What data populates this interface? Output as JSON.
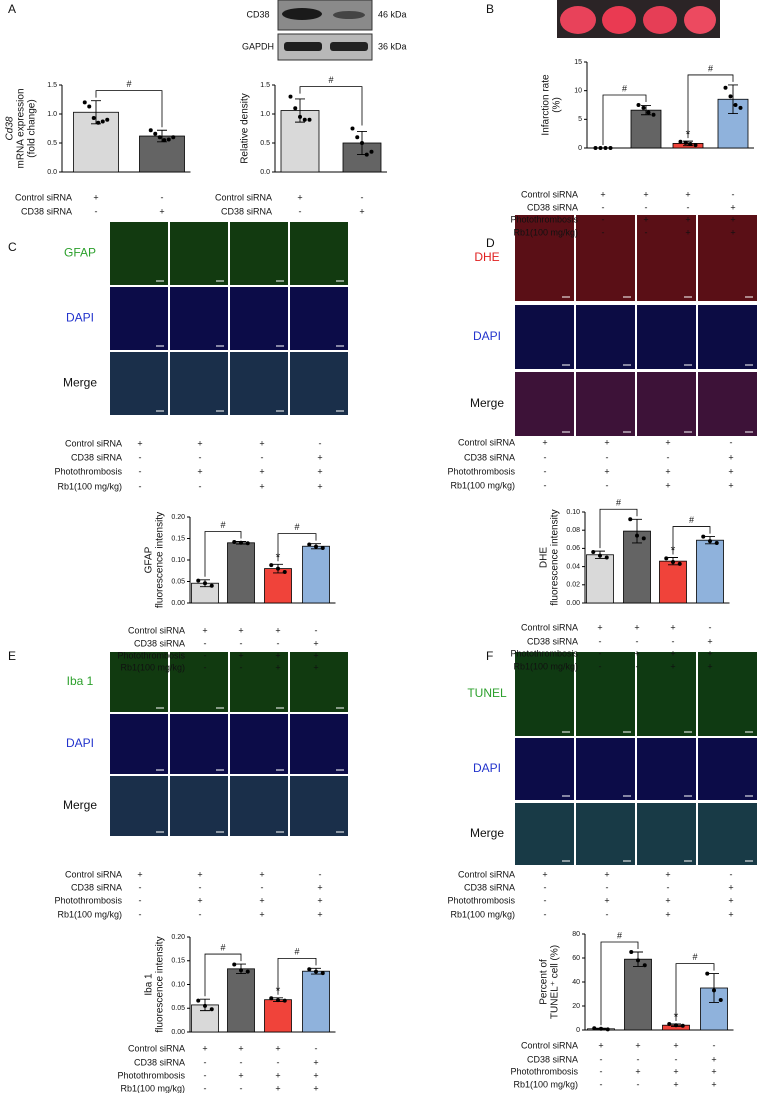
{
  "panel_labels": [
    "A",
    "B",
    "C",
    "D",
    "E",
    "F"
  ],
  "blot": {
    "rows": [
      {
        "protein": "CD38",
        "size": "46 kDa"
      },
      {
        "protein": "GAPDH",
        "size": "36 kDa"
      }
    ]
  },
  "image_panels": [
    {
      "rows": [
        "GFAP",
        "DAPI",
        "Merge"
      ]
    },
    {
      "rows": [
        "DHE",
        "DAPI",
        "Merge"
      ]
    },
    {
      "rows": [
        "Iba 1",
        "DAPI",
        "Merge"
      ]
    },
    {
      "rows": [
        "TUNEL",
        "DAPI",
        "Merge"
      ]
    }
  ],
  "tables": [
    {
      "rows": [
        {
          "label": "Control siRNA",
          "signs": [
            "+",
            "-"
          ]
        },
        {
          "label": "CD38 siRNA",
          "signs": [
            "-",
            "+"
          ]
        }
      ]
    },
    {
      "rows": [
        {
          "label": "Control siRNA",
          "signs": [
            "+",
            "-"
          ]
        },
        {
          "label": "CD38 siRNA",
          "signs": [
            "-",
            "+"
          ]
        }
      ]
    },
    {
      "rows": [
        {
          "label": "Control siRNA",
          "signs": [
            "+",
            "+",
            "+",
            "-"
          ]
        },
        {
          "label": "CD38 siRNA",
          "signs": [
            "-",
            "-",
            "-",
            "+"
          ]
        },
        {
          "label": "Photothrombosis",
          "signs": [
            "-",
            "+",
            "+",
            "+"
          ]
        },
        {
          "label": "Rb1(100 mg/kg)",
          "signs": [
            "-",
            "-",
            "+",
            "+"
          ]
        }
      ]
    },
    {
      "rows": [
        {
          "label": "Control siRNA",
          "signs": [
            "+",
            "+",
            "+",
            "-"
          ]
        },
        {
          "label": "CD38 siRNA",
          "signs": [
            "-",
            "-",
            "-",
            "+"
          ]
        },
        {
          "label": "Photothrombosis",
          "signs": [
            "-",
            "+",
            "+",
            "+"
          ]
        },
        {
          "label": "Rb1(100 mg/kg)",
          "signs": [
            "-",
            "-",
            "+",
            "+"
          ]
        }
      ]
    },
    {
      "rows": [
        {
          "label": "Control siRNA",
          "signs": [
            "+",
            "+",
            "+",
            "-"
          ]
        },
        {
          "label": "CD38 siRNA",
          "signs": [
            "-",
            "-",
            "-",
            "+"
          ]
        },
        {
          "label": "Photothrombosis",
          "signs": [
            "-",
            "+",
            "+",
            "+"
          ]
        },
        {
          "label": "Rb1(100 mg/kg)",
          "signs": [
            "-",
            "-",
            "+",
            "+"
          ]
        }
      ]
    },
    {
      "rows": [
        {
          "label": "Control siRNA",
          "signs": [
            "+",
            "+",
            "+",
            "-"
          ]
        },
        {
          "label": "CD38 siRNA",
          "signs": [
            "-",
            "-",
            "-",
            "+"
          ]
        },
        {
          "label": "Photothrombosis",
          "signs": [
            "-",
            "+",
            "+",
            "+"
          ]
        },
        {
          "label": "Rb1(100 mg/kg)",
          "signs": [
            "-",
            "-",
            "+",
            "+"
          ]
        }
      ]
    },
    {
      "rows": [
        {
          "label": "Control siRNA",
          "signs": [
            "+",
            "+",
            "+",
            "-"
          ]
        },
        {
          "label": "CD38 siRNA",
          "signs": [
            "-",
            "-",
            "-",
            "+"
          ]
        },
        {
          "label": "Photothrombosis",
          "signs": [
            "-",
            "+",
            "+",
            "+"
          ]
        },
        {
          "label": "Rb1(100 mg/kg)",
          "signs": [
            "-",
            "-",
            "+",
            "+"
          ]
        }
      ]
    },
    {
      "rows": [
        {
          "label": "Control siRNA",
          "signs": [
            "+",
            "+",
            "+",
            "-"
          ]
        },
        {
          "label": "CD38 siRNA",
          "signs": [
            "-",
            "-",
            "-",
            "+"
          ]
        },
        {
          "label": "Photothrombosis",
          "signs": [
            "-",
            "+",
            "+",
            "+"
          ]
        },
        {
          "label": "Rb1(100 mg/kg)",
          "signs": [
            "-",
            "-",
            "+",
            "+"
          ]
        }
      ]
    },
    {
      "rows": [
        {
          "label": "Control siRNA",
          "signs": [
            "+",
            "+",
            "+",
            "-"
          ]
        },
        {
          "label": "CD38 siRNA",
          "signs": [
            "-",
            "-",
            "-",
            "+"
          ]
        },
        {
          "label": "Photothrombosis",
          "signs": [
            "-",
            "+",
            "+",
            "+"
          ]
        },
        {
          "label": "Rb1(100 mg/kg)",
          "signs": [
            "-",
            "-",
            "+",
            "+"
          ]
        }
      ]
    },
    {
      "rows": [
        {
          "label": "Control siRNA",
          "signs": [
            "+",
            "+",
            "+",
            "-"
          ]
        },
        {
          "label": "CD38 siRNA",
          "signs": [
            "-",
            "-",
            "-",
            "+"
          ]
        },
        {
          "label": "Photothrombosis",
          "signs": [
            "-",
            "+",
            "+",
            "+"
          ]
        },
        {
          "label": "Rb1(100 mg/kg)",
          "signs": [
            "-",
            "-",
            "+",
            "+"
          ]
        }
      ]
    },
    {
      "rows": [
        {
          "label": "Control siRNA",
          "signs": [
            "+",
            "+",
            "+",
            "-"
          ]
        },
        {
          "label": "CD38 siRNA",
          "signs": [
            "-",
            "-",
            "-",
            "+"
          ]
        },
        {
          "label": "Photothrombosis",
          "signs": [
            "-",
            "+",
            "+",
            "+"
          ]
        },
        {
          "label": "Rb1(100 mg/kg)",
          "signs": [
            "-",
            "-",
            "+",
            "+"
          ]
        }
      ]
    }
  ],
  "chart_data": [
    {
      "type": "bar",
      "ylabel": [
        "Cd38",
        "mRNA expression",
        "(fold change)"
      ],
      "values": [
        1.03,
        0.62
      ],
      "errors": [
        0.2,
        0.1
      ],
      "colors": [
        "#d9d9d9",
        "#646464"
      ],
      "points": [
        [
          1.2,
          1.13,
          0.93,
          0.85,
          0.87,
          0.9
        ],
        [
          0.72,
          0.66,
          0.6,
          0.55,
          0.56,
          0.6
        ]
      ],
      "ylim": [
        0,
        1.5
      ],
      "yticks": [
        {
          "value": 0,
          "label": "0.0"
        },
        {
          "value": 0.5,
          "label": "0.5"
        },
        {
          "value": 1,
          "label": "1.0"
        },
        {
          "value": 1.5,
          "label": "1.5"
        }
      ],
      "annotations": [
        "#"
      ]
    },
    {
      "type": "bar",
      "ylabel": [
        "Relative density"
      ],
      "values": [
        1.06,
        0.5
      ],
      "errors": [
        0.2,
        0.2
      ],
      "colors": [
        "#d9d9d9",
        "#646464"
      ],
      "points": [
        [
          1.3,
          1.1,
          0.95,
          0.9,
          0.9
        ],
        [
          0.75,
          0.6,
          0.5,
          0.3,
          0.35
        ]
      ],
      "ylim": [
        0,
        1.5
      ],
      "yticks": [
        {
          "value": 0,
          "label": "0.0"
        },
        {
          "value": 0.5,
          "label": "0.5"
        },
        {
          "value": 1,
          "label": "1.0"
        },
        {
          "value": 1.5,
          "label": "1.5"
        }
      ],
      "annotations": [
        "#"
      ]
    },
    {
      "type": "bar",
      "ylabel": [
        "Infarction rate",
        "(%)"
      ],
      "values": [
        0,
        6.6,
        0.8,
        8.5
      ],
      "errors": [
        0,
        0.8,
        0.4,
        2.5
      ],
      "colors": [
        "#d9d9d9",
        "#646464",
        "#f0433a",
        "#8fb2dc"
      ],
      "points": [
        [
          0,
          0,
          0,
          0
        ],
        [
          7.5,
          7,
          6.2,
          5.8
        ],
        [
          1.1,
          0.9,
          0.7,
          0.5
        ],
        [
          10.5,
          9,
          7.5,
          7
        ]
      ],
      "ylim": [
        0,
        15
      ],
      "yticks": [
        0,
        5,
        10,
        15
      ],
      "annotations": [
        "#",
        "#",
        "*"
      ]
    },
    {
      "type": "bar",
      "ylabel": [
        "GFAP",
        "fluorescence intensity"
      ],
      "values": [
        0.046,
        0.14,
        0.08,
        0.132
      ],
      "errors": [
        0.008,
        0.003,
        0.01,
        0.006
      ],
      "colors": [
        "#d9d9d9",
        "#646464",
        "#f0433a",
        "#8fb2dc"
      ],
      "points": [
        [
          0.052,
          0.046,
          0.04
        ],
        [
          0.142,
          0.14,
          0.139
        ],
        [
          0.088,
          0.08,
          0.072
        ],
        [
          0.136,
          0.131,
          0.128
        ]
      ],
      "ylim": [
        0,
        0.2
      ],
      "yticks": [
        {
          "value": 0,
          "label": "0.00"
        },
        {
          "value": 0.05,
          "label": "0.05"
        },
        {
          "value": 0.1,
          "label": "0.10"
        },
        {
          "value": 0.15,
          "label": "0.15"
        },
        {
          "value": 0.2,
          "label": "0.20"
        }
      ],
      "annotations": [
        "#",
        "#",
        "*"
      ]
    },
    {
      "type": "bar",
      "ylabel": [
        "DHE",
        "fluorescence intensity"
      ],
      "values": [
        0.053,
        0.079,
        0.046,
        0.069
      ],
      "errors": [
        0.004,
        0.013,
        0.004,
        0.004
      ],
      "colors": [
        "#d9d9d9",
        "#646464",
        "#f0433a",
        "#8fb2dc"
      ],
      "points": [
        [
          0.056,
          0.052,
          0.05
        ],
        [
          0.092,
          0.074,
          0.071
        ],
        [
          0.049,
          0.045,
          0.043
        ],
        [
          0.073,
          0.068,
          0.066
        ]
      ],
      "ylim": [
        0,
        0.1
      ],
      "yticks": [
        {
          "value": 0,
          "label": "0.00"
        },
        {
          "value": 0.02,
          "label": "0.02"
        },
        {
          "value": 0.04,
          "label": "0.04"
        },
        {
          "value": 0.06,
          "label": "0.06"
        },
        {
          "value": 0.08,
          "label": "0.08"
        },
        {
          "value": 0.1,
          "label": "0.10"
        }
      ],
      "annotations": [
        "#",
        "#",
        "*"
      ]
    },
    {
      "type": "bar",
      "ylabel": [
        "Iba 1",
        "fluorescence intensity"
      ],
      "values": [
        0.057,
        0.133,
        0.068,
        0.128
      ],
      "errors": [
        0.012,
        0.01,
        0.004,
        0.006
      ],
      "colors": [
        "#d9d9d9",
        "#646464",
        "#f0433a",
        "#8fb2dc"
      ],
      "points": [
        [
          0.066,
          0.055,
          0.048
        ],
        [
          0.142,
          0.13,
          0.127
        ],
        [
          0.071,
          0.067,
          0.066
        ],
        [
          0.132,
          0.127,
          0.124
        ]
      ],
      "ylim": [
        0,
        0.2
      ],
      "yticks": [
        {
          "value": 0,
          "label": "0.00"
        },
        {
          "value": 0.05,
          "label": "0.05"
        },
        {
          "value": 0.1,
          "label": "0.10"
        },
        {
          "value": 0.15,
          "label": "0.15"
        },
        {
          "value": 0.2,
          "label": "0.20"
        }
      ],
      "annotations": [
        "#",
        "#",
        "*"
      ]
    },
    {
      "type": "bar",
      "ylabel": [
        "Percent of",
        "TUNEL⁺ cell (%)"
      ],
      "values": [
        1,
        59,
        4,
        35
      ],
      "errors": [
        0.5,
        6,
        1,
        12
      ],
      "colors": [
        "#d9d9d9",
        "#646464",
        "#f0433a",
        "#8fb2dc"
      ],
      "points": [
        [
          1.5,
          1,
          0.5
        ],
        [
          65,
          58,
          54
        ],
        [
          5,
          4,
          3.5
        ],
        [
          47,
          33,
          25
        ]
      ],
      "ylim": [
        0,
        80
      ],
      "yticks": [
        0,
        20,
        40,
        60,
        80
      ],
      "annotations": [
        "#",
        "#",
        "*"
      ]
    }
  ]
}
